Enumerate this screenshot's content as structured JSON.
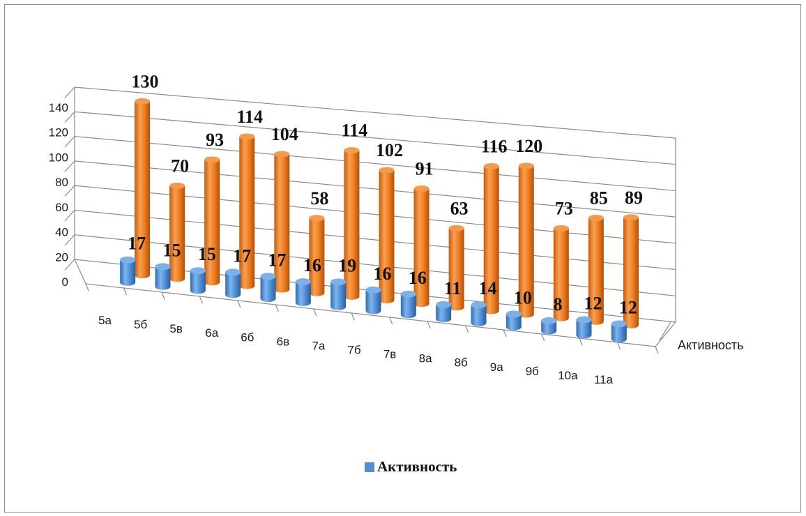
{
  "chart_data": {
    "type": "bar",
    "categories": [
      "5а",
      "5б",
      "5в",
      "6а",
      "6б",
      "6в",
      "7а",
      "7б",
      "7в",
      "8а",
      "8б",
      "9а",
      "9б",
      "10а",
      "11а"
    ],
    "series": [
      {
        "name": "Активность",
        "values": [
          17,
          15,
          15,
          17,
          17,
          16,
          19,
          16,
          16,
          11,
          14,
          10,
          8,
          12,
          12
        ],
        "color": "#4f8fd6"
      },
      {
        "values": [
          130,
          70,
          93,
          114,
          104,
          58,
          114,
          102,
          91,
          63,
          116,
          120,
          73,
          85,
          89
        ],
        "color": "#ee7d1f"
      }
    ],
    "depth_labels": [
      "Активность"
    ],
    "ylim": [
      0,
      140
    ],
    "yticks": [
      "0",
      "20",
      "40",
      "60",
      "80",
      "100",
      "120",
      "140"
    ],
    "grid": true,
    "legend": {
      "position": "bottom",
      "entries": [
        "Активность"
      ]
    }
  }
}
